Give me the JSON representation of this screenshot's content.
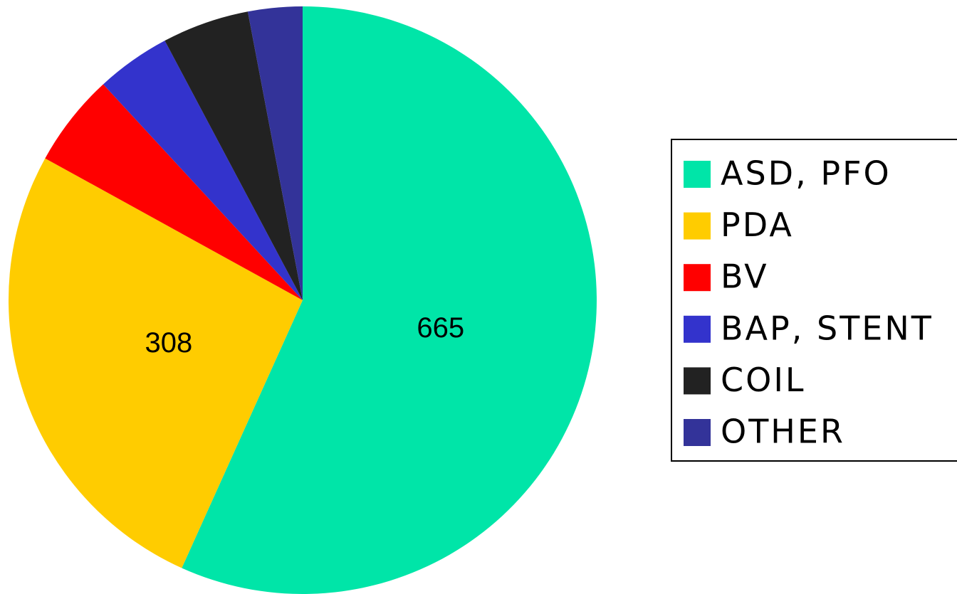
{
  "chart_data": {
    "type": "pie",
    "categories": [
      "ASD, PFO",
      "PDA",
      "BV",
      "BAP, STENT",
      "COIL",
      "OTHER"
    ],
    "values": [
      665,
      308,
      60,
      48,
      56,
      35
    ],
    "value_labels": [
      "665",
      "308",
      null,
      null,
      null,
      null
    ],
    "colors": [
      "#00e5a8",
      "#ffcc00",
      "#ff0000",
      "#3333cc",
      "#222222",
      "#333399"
    ],
    "legend": "right"
  }
}
